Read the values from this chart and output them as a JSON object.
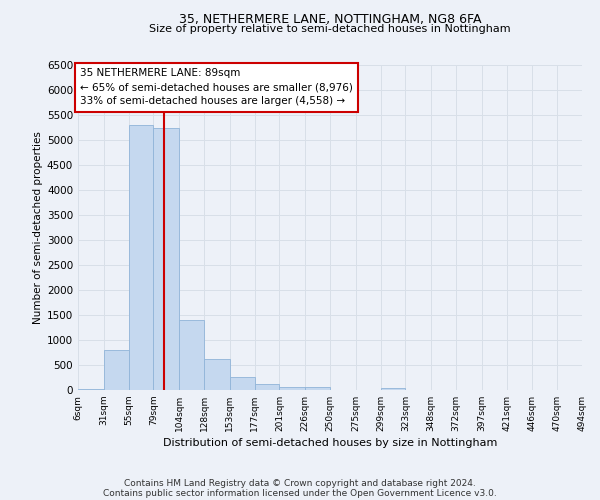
{
  "title1": "35, NETHERMERE LANE, NOTTINGHAM, NG8 6FA",
  "title2": "Size of property relative to semi-detached houses in Nottingham",
  "xlabel": "Distribution of semi-detached houses by size in Nottingham",
  "ylabel": "Number of semi-detached properties",
  "bin_edges": [
    6,
    31,
    55,
    79,
    104,
    128,
    153,
    177,
    201,
    226,
    250,
    275,
    299,
    323,
    348,
    372,
    397,
    421,
    446,
    470,
    494
  ],
  "bar_heights": [
    30,
    800,
    5300,
    5250,
    1400,
    620,
    260,
    120,
    65,
    55,
    0,
    0,
    50,
    0,
    0,
    0,
    0,
    0,
    0,
    0
  ],
  "bar_color": "#c5d8ef",
  "bar_edgecolor": "#90b4d8",
  "property_size": 89,
  "property_label": "35 NETHERMERE LANE: 89sqm",
  "annotation_line1": "← 65% of semi-detached houses are smaller (8,976)",
  "annotation_line2": "33% of semi-detached houses are larger (4,558) →",
  "vline_color": "#cc0000",
  "annotation_box_edgecolor": "#cc0000",
  "ylim": [
    0,
    6500
  ],
  "yticks": [
    0,
    500,
    1000,
    1500,
    2000,
    2500,
    3000,
    3500,
    4000,
    4500,
    5000,
    5500,
    6000,
    6500
  ],
  "tick_labels": [
    "6sqm",
    "31sqm",
    "55sqm",
    "79sqm",
    "104sqm",
    "128sqm",
    "153sqm",
    "177sqm",
    "201sqm",
    "226sqm",
    "250sqm",
    "275sqm",
    "299sqm",
    "323sqm",
    "348sqm",
    "372sqm",
    "397sqm",
    "421sqm",
    "446sqm",
    "470sqm",
    "494sqm"
  ],
  "footnote1": "Contains HM Land Registry data © Crown copyright and database right 2024.",
  "footnote2": "Contains public sector information licensed under the Open Government Licence v3.0.",
  "bg_color": "#edf1f8",
  "grid_color": "#d8dfe8"
}
